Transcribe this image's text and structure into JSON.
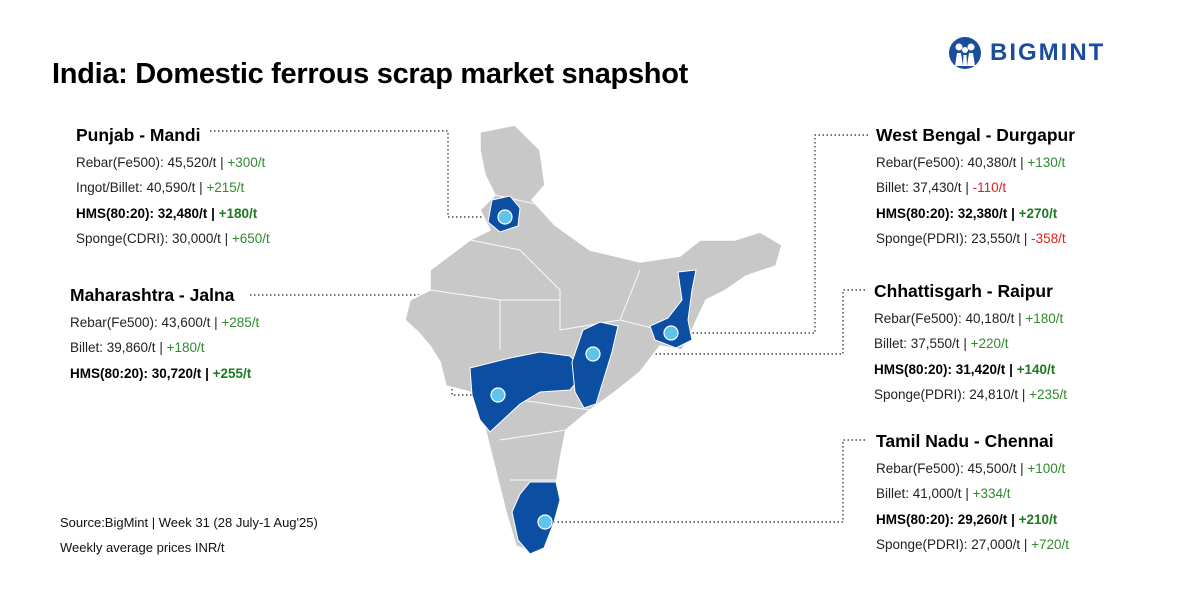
{
  "title": "India: Domestic ferrous scrap market snapshot",
  "logo": {
    "text": "BIGMINT",
    "color": "#1a4e9c"
  },
  "colors": {
    "highlight": "#0b4ea2",
    "dot": "#5ec4ee",
    "map": "#c8c8c8",
    "positive": "#2e8b2e",
    "negative": "#e02020"
  },
  "regions": [
    {
      "name": "Punjab - Mandi",
      "rows": [
        {
          "label": "Rebar(Fe500): 45,520/t",
          "change": "+300/t",
          "bold": false
        },
        {
          "label": "Ingot/Billet: 40,590/t",
          "change": "+215/t",
          "bold": false
        },
        {
          "label": "HMS(80:20): 32,480/t",
          "change": "+180/t",
          "bold": true
        },
        {
          "label": "Sponge(CDRI): 30,000/t",
          "change": "+650/t",
          "bold": false
        }
      ]
    },
    {
      "name": "Maharashtra - Jalna",
      "rows": [
        {
          "label": "Rebar(Fe500): 43,600/t",
          "change": "+285/t",
          "bold": false
        },
        {
          "label": "Billet: 39,860/t",
          "change": "+180/t",
          "bold": false
        },
        {
          "label": "HMS(80:20): 30,720/t",
          "change": "+255/t",
          "bold": true
        }
      ]
    },
    {
      "name": "West Bengal - Durgapur",
      "rows": [
        {
          "label": "Rebar(Fe500): 40,380/t",
          "change": "+130/t",
          "bold": false
        },
        {
          "label": "Billet: 37,430/t",
          "change": "-110/t",
          "bold": false
        },
        {
          "label": "HMS(80:20): 32,380/t",
          "change": "+270/t",
          "bold": true
        },
        {
          "label": "Sponge(PDRI): 23,550/t",
          "change": "-358/t",
          "bold": false
        }
      ]
    },
    {
      "name": "Chhattisgarh - Raipur",
      "rows": [
        {
          "label": "Rebar(Fe500): 40,180/t",
          "change": "+180/t",
          "bold": false
        },
        {
          "label": "Billet: 37,550/t",
          "change": "+220/t",
          "bold": false
        },
        {
          "label": "HMS(80:20): 31,420/t",
          "change": "+140/t",
          "bold": true
        },
        {
          "label": "Sponge(PDRI): 24,810/t",
          "change": "+235/t",
          "bold": false
        }
      ]
    },
    {
      "name": "Tamil Nadu - Chennai",
      "rows": [
        {
          "label": "Rebar(Fe500): 45,500/t",
          "change": "+100/t",
          "bold": false
        },
        {
          "label": "Billet: 41,000/t",
          "change": "+334/t",
          "bold": false
        },
        {
          "label": "HMS(80:20): 29,260/t",
          "change": "+210/t",
          "bold": true
        },
        {
          "label": "Sponge(PDRI): 27,000/t",
          "change": "+720/t",
          "bold": false
        }
      ]
    }
  ],
  "source": {
    "line1": "Source:BigMint | Week 31 (28 July-1 Aug'25)",
    "line2": "Weekly average prices INR/t"
  }
}
